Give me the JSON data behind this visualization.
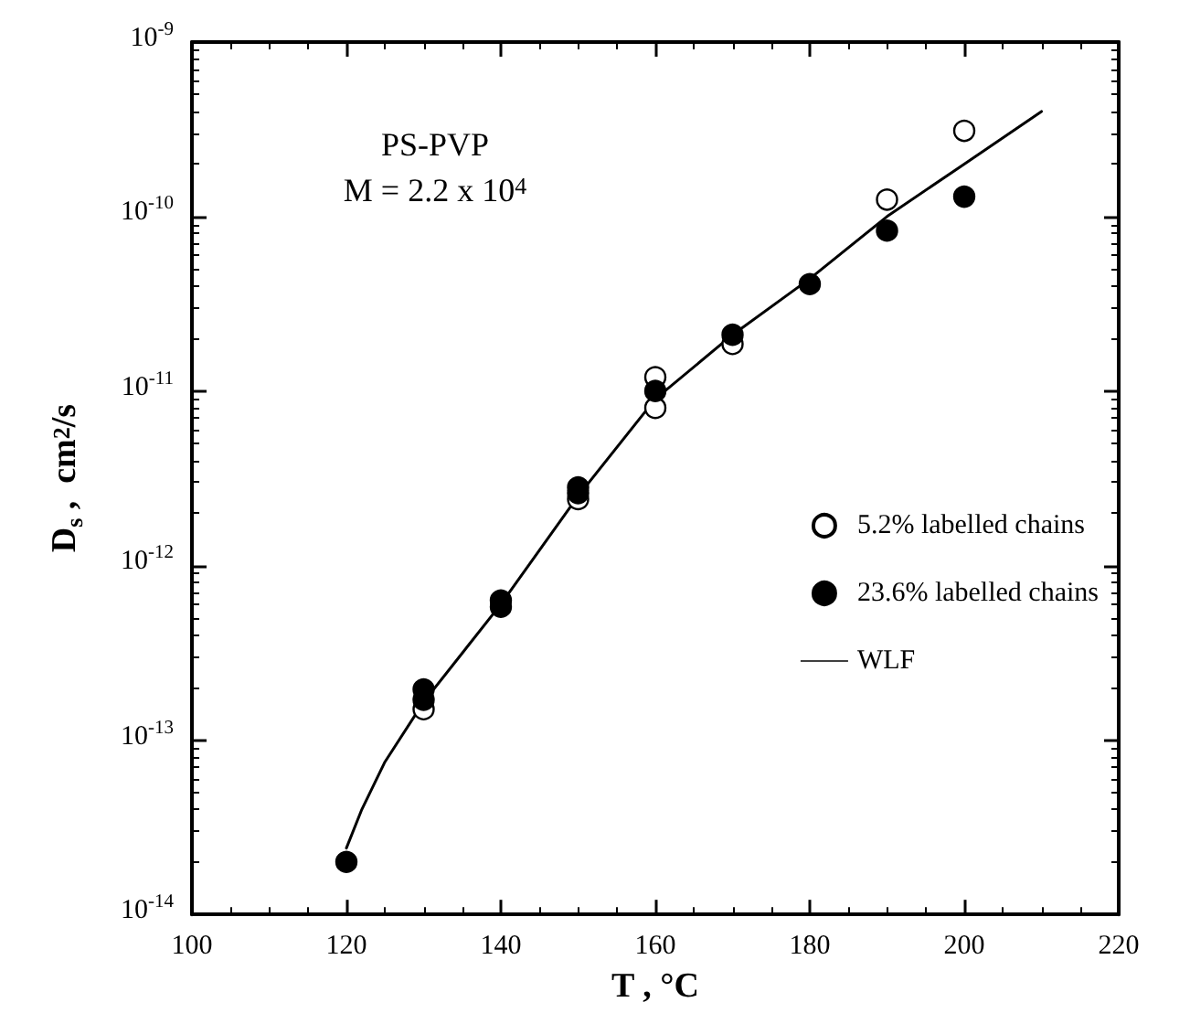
{
  "chart_data": {
    "type": "scatter",
    "xlabel": "T , °C",
    "ylabel": "D$_{s}$ ,  cm$^{2}$/s",
    "annotations": [
      "PS-PVP",
      "M = 2.2 x 10$^{4}$"
    ],
    "log": "y",
    "xlim": [
      100,
      220
    ],
    "xticks": [
      100,
      120,
      140,
      160,
      180,
      200,
      220
    ],
    "ylim": [
      1e-14,
      1e-09
    ],
    "yticks": [
      {
        "value": 1e-14,
        "label": "10$^{-14}$"
      },
      {
        "value": 1e-13,
        "label": "10$^{-13}$"
      },
      {
        "value": 1e-12,
        "label": "10$^{-12}$"
      },
      {
        "value": 1e-11,
        "label": "10$^{-11}$"
      },
      {
        "value": 1e-10,
        "label": "10$^{-10}$"
      },
      {
        "value": 1e-09,
        "label": "10$^{-9}$"
      }
    ],
    "grid": false,
    "legend": "right",
    "marker": "circle",
    "series": [
      {
        "name": "5.2% labelled chains",
        "color": "#ffffff",
        "x": [
          130,
          150,
          160,
          160,
          170,
          190,
          200
        ],
        "values": [
          1.5e-13,
          2.4e-12,
          1.2e-11,
          8e-12,
          1.86e-11,
          1.25e-10,
          3.1e-10
        ]
      },
      {
        "name": "23.6% labelled chains",
        "color": "#000000",
        "x": [
          120,
          130,
          130,
          140,
          140,
          150,
          150,
          160,
          170,
          180,
          190,
          200
        ],
        "values": [
          2e-14,
          1.95e-13,
          1.7e-13,
          6.3e-13,
          5.8e-13,
          2.8e-12,
          2.6e-12,
          1e-11,
          2.1e-11,
          4.1e-11,
          8.3e-11,
          1.3e-10
        ]
      },
      {
        "name": "WLF",
        "type": "line",
        "color": "#000000",
        "marker": "none",
        "x": [
          120,
          122,
          125,
          130,
          140,
          150,
          160,
          170,
          180,
          190,
          200,
          210
        ],
        "values": [
          2.4e-14,
          4e-14,
          7.5e-14,
          1.65e-13,
          6e-13,
          2.5e-12,
          9e-12,
          2.1e-11,
          4.4e-11,
          1e-10,
          2e-10,
          4e-10
        ]
      }
    ]
  }
}
